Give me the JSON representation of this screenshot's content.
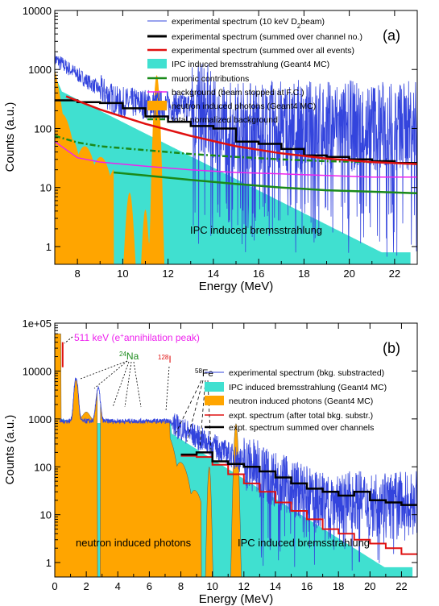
{
  "chart_data": [
    {
      "type": "line",
      "panel_label": "(a)",
      "xlabel": "Energy (MeV)",
      "ylabel": "Counts (a.u.)",
      "xlim": [
        7,
        23
      ],
      "ylim": [
        0.5,
        10000
      ],
      "yscale": "log",
      "xticks": [
        8,
        10,
        12,
        14,
        16,
        18,
        20,
        22
      ],
      "yticks": [
        {
          "v": 1,
          "label": "1"
        },
        {
          "v": 10,
          "label": "10"
        },
        {
          "v": 100,
          "label": "100"
        },
        {
          "v": 1000,
          "label": "1000"
        },
        {
          "v": 10000,
          "label": "10000"
        }
      ],
      "legend_position": "top-right",
      "legend": [
        {
          "label": "experimental spectrum (10 keV D",
          "sub": "2",
          "label_end": "beam)",
          "color": "#3344dd",
          "style": "thin"
        },
        {
          "label": "experimental spectrum (summed over channel no.)",
          "color": "#000000",
          "style": "thick"
        },
        {
          "label": "experimental spectrum (summed over all events)",
          "color": "#e01010",
          "style": "thick"
        },
        {
          "label": "IPC induced bremsstrahlung (Geant4 MC)",
          "color": "#40e0d0",
          "style": "box"
        },
        {
          "label": "muonic contributions",
          "color": "#1a8a1a",
          "style": "thick"
        },
        {
          "label": "background (beam stopped at F.C.)",
          "color": "#ee22ee",
          "style": "medium"
        },
        {
          "label": "neutron induced photons (Geant4 MC)",
          "color": "#ffa500",
          "style": "box"
        },
        {
          "label": "total normalized background",
          "color": "#1a8a1a",
          "style": "dashdot"
        }
      ],
      "annotations": [
        "IPC induced bremsstrahlung"
      ],
      "series": [
        {
          "name": "experimental spectrum (summed over all events)",
          "x": [
            7.5,
            9,
            11,
            13,
            15,
            17,
            19,
            21,
            23
          ],
          "y": [
            350,
            210,
            120,
            75,
            50,
            38,
            31,
            27,
            25
          ]
        },
        {
          "name": "muonic contributions",
          "x": [
            9.6,
            11,
            13,
            15,
            17,
            19,
            21,
            23
          ],
          "y": [
            18,
            16,
            13.5,
            11.5,
            10,
            9,
            8.5,
            8
          ]
        },
        {
          "name": "background (beam stopped at F.C.)",
          "x": [
            7,
            8,
            9,
            11,
            13,
            15,
            17,
            19,
            21,
            23
          ],
          "y": [
            60,
            32,
            27,
            23,
            20,
            18,
            17,
            16,
            15,
            15
          ]
        },
        {
          "name": "total normalized background",
          "x": [
            7,
            8,
            9,
            11,
            13,
            15,
            17,
            19,
            21,
            23
          ],
          "y": [
            75,
            58,
            50,
            43,
            37,
            33,
            30,
            28,
            27,
            25
          ]
        },
        {
          "name": "experimental spectrum (summed over channel no.)",
          "x": [
            7.5,
            8.5,
            9.5,
            10.5,
            11.5,
            12.5,
            13.5,
            14.5,
            15.5,
            16.5,
            17.5,
            18.5,
            19.5,
            20.5,
            21.5,
            22.5
          ],
          "y": [
            300,
            280,
            270,
            220,
            160,
            130,
            110,
            100,
            60,
            55,
            45,
            35,
            33,
            30,
            28,
            26
          ]
        }
      ]
    },
    {
      "type": "line",
      "panel_label": "(b)",
      "xlabel": "Energy (MeV)",
      "ylabel": "Counts (a.u.)",
      "xlim": [
        0,
        23
      ],
      "ylim": [
        0.5,
        100000
      ],
      "yscale": "log",
      "xticks": [
        0,
        2,
        4,
        6,
        8,
        10,
        12,
        14,
        16,
        18,
        20,
        22
      ],
      "yticks": [
        {
          "v": 1,
          "label": "1"
        },
        {
          "v": 10,
          "label": "10"
        },
        {
          "v": 100,
          "label": "100"
        },
        {
          "v": 1000,
          "label": "1000"
        },
        {
          "v": 10000,
          "label": "10000"
        },
        {
          "v": 100000,
          "label": "1e+05"
        }
      ],
      "legend_position": "right",
      "legend": [
        {
          "label": "experimental spectrum (bkg. substracted)",
          "color": "#3344dd",
          "style": "thin"
        },
        {
          "label": "IPC induced bremsstrahlung (Geant4 MC)",
          "color": "#40e0d0",
          "style": "box"
        },
        {
          "label": "neutron induced photons (Geant4 MC)",
          "color": "#ffa500",
          "style": "box"
        },
        {
          "label": "expt. spectrum (after total bkg. substr.)",
          "color": "#e01010",
          "style": "medium"
        },
        {
          "label": "expt. spectrum summed over channels",
          "color": "#000000",
          "style": "thick"
        }
      ],
      "annotations": {
        "annihilation_pre": "511 keV (e",
        "annihilation_sup": "+",
        "annihilation_post": "annihilation peak)",
        "na_mass": "24",
        "na_symbol": "Na",
        "i_mass": "128",
        "i_symbol": "I",
        "fe_mass": "58",
        "fe_symbol": "Fe",
        "neutron_region": "neutron induced photons",
        "ipc_region": "IPC induced bremsstrahlung"
      },
      "series": [
        {
          "name": "expt. spectrum summed over channels",
          "x": [
            8.5,
            9.5,
            10.5,
            11.5,
            12.5,
            13.5,
            14.5,
            15.5,
            16.5,
            17.5,
            18.5,
            19.5,
            20.5,
            21.5,
            22.5
          ],
          "y": [
            180,
            200,
            130,
            115,
            100,
            80,
            60,
            45,
            35,
            30,
            25,
            30,
            20,
            18,
            16
          ]
        },
        {
          "name": "expt. spectrum (after total bkg. substr.)",
          "x": [
            8.5,
            9.5,
            10.5,
            11.5,
            12.5,
            13.5,
            14.5,
            15.5,
            16.5,
            17.5,
            18.5,
            19.5,
            20.5,
            21.5,
            22.5
          ],
          "y": [
            170,
            160,
            110,
            70,
            45,
            30,
            18,
            12,
            8,
            5,
            4,
            3,
            2.5,
            2,
            1.5
          ]
        }
      ]
    }
  ]
}
